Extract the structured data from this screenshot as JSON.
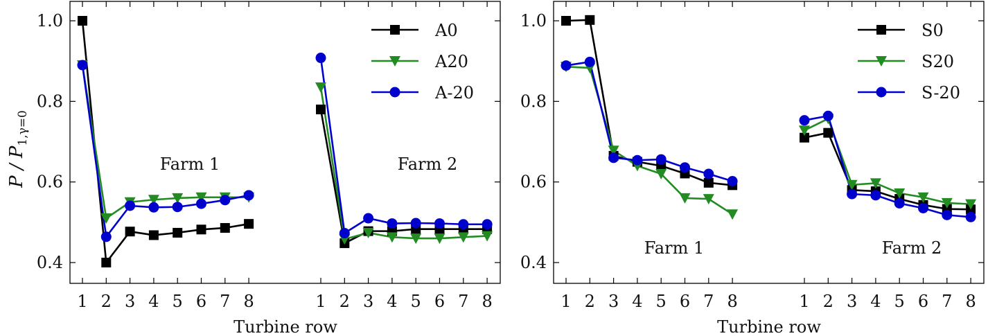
{
  "ylabel": "P / P",
  "ylabel_sub": "1,γ=0",
  "chart_data": [
    {
      "type": "line",
      "xlabel": "Turbine row",
      "ylim": [
        0.35,
        1.05
      ],
      "yticks": [
        "0.4",
        "0.6",
        "0.8",
        "1.0"
      ],
      "xtick_labels": [
        "1",
        "2",
        "3",
        "4",
        "5",
        "6",
        "7",
        "8"
      ],
      "legend_position": "top-right",
      "farm_labels": [
        "Farm 1",
        "Farm 2"
      ],
      "series": [
        {
          "name": "A0",
          "color": "#000000",
          "marker": "square",
          "farm1": [
            1.0,
            0.4,
            0.477,
            0.468,
            0.474,
            0.482,
            0.486,
            0.496
          ],
          "farm2": [
            0.78,
            0.448,
            0.478,
            0.478,
            0.483,
            0.483,
            0.483,
            0.483
          ]
        },
        {
          "name": "A20",
          "color": "#228b22",
          "marker": "triangle-down",
          "farm1": [
            0.89,
            0.51,
            0.55,
            0.556,
            0.56,
            0.562,
            0.562,
            0.562
          ],
          "farm2": [
            0.835,
            0.458,
            0.474,
            0.463,
            0.46,
            0.46,
            0.463,
            0.466
          ]
        },
        {
          "name": "A-20",
          "color": "#0000cd",
          "marker": "circle",
          "farm1": [
            0.89,
            0.464,
            0.541,
            0.537,
            0.538,
            0.546,
            0.555,
            0.567
          ],
          "farm2": [
            0.908,
            0.473,
            0.51,
            0.497,
            0.498,
            0.497,
            0.495,
            0.495
          ]
        }
      ]
    },
    {
      "type": "line",
      "xlabel": "Turbine row",
      "ylim": [
        0.35,
        1.05
      ],
      "yticks": [
        "0.4",
        "0.6",
        "0.8",
        "1.0"
      ],
      "xtick_labels": [
        "1",
        "2",
        "3",
        "4",
        "5",
        "6",
        "7",
        "8"
      ],
      "legend_position": "top-right",
      "farm_labels": [
        "Farm 1",
        "Farm 2"
      ],
      "series": [
        {
          "name": "S0",
          "color": "#000000",
          "marker": "square",
          "farm1": [
            1.0,
            1.002,
            0.665,
            0.65,
            0.64,
            0.621,
            0.598,
            0.592
          ],
          "farm2": [
            0.71,
            0.722,
            0.58,
            0.577,
            0.558,
            0.543,
            0.533,
            0.532
          ]
        },
        {
          "name": "S20",
          "color": "#228b22",
          "marker": "triangle-down",
          "farm1": [
            0.886,
            0.883,
            0.678,
            0.64,
            0.62,
            0.56,
            0.558,
            0.52
          ],
          "farm2": [
            0.728,
            0.757,
            0.593,
            0.597,
            0.572,
            0.562,
            0.548,
            0.545
          ]
        },
        {
          "name": "S-20",
          "color": "#0000cd",
          "marker": "circle",
          "farm1": [
            0.889,
            0.898,
            0.66,
            0.654,
            0.656,
            0.636,
            0.62,
            0.602
          ],
          "farm2": [
            0.753,
            0.764,
            0.57,
            0.567,
            0.547,
            0.535,
            0.518,
            0.513
          ]
        }
      ]
    }
  ]
}
